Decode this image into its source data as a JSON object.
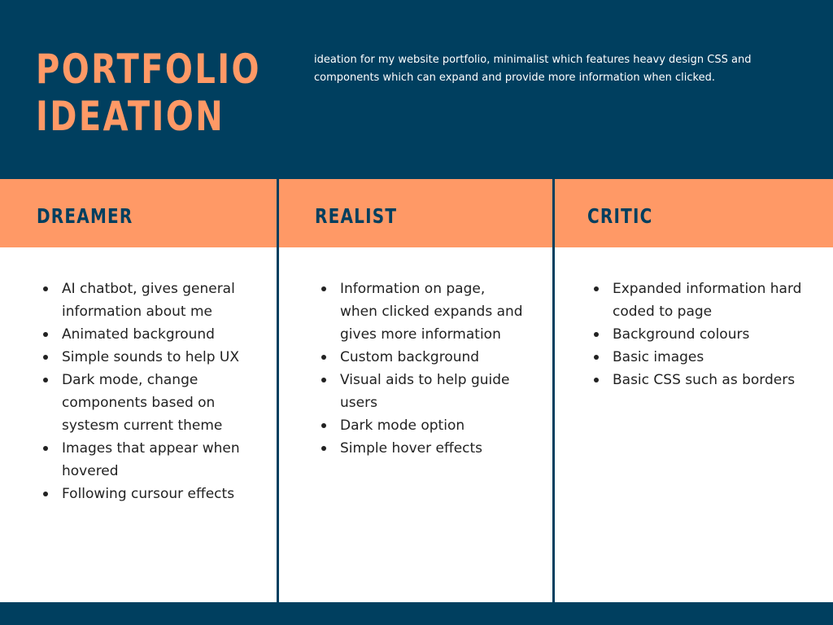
{
  "theme": {
    "navy": "#003F5F",
    "orange": "#FF9966"
  },
  "header": {
    "title_line1": "PORTFOLIO",
    "title_line2": "IDEATION",
    "description": "ideation for my website portfolio, minimalist which features heavy design CSS and components which can expand and provide more information when clicked."
  },
  "columns": [
    {
      "heading": "DREAMER",
      "items": [
        "AI chatbot, gives general information about me",
        "Animated background",
        "Simple sounds to help UX",
        "Dark mode, change components based on systesm current theme",
        "Images that appear when hovered",
        "Following cursour effects"
      ]
    },
    {
      "heading": "REALIST",
      "items": [
        "Information on page, when clicked expands and gives more information",
        "Custom background",
        "Visual aids to help guide users",
        "Dark mode option",
        "Simple hover effects"
      ]
    },
    {
      "heading": "CRITIC",
      "items": [
        "Expanded information hard coded to page",
        "Background colours",
        "Basic images",
        "Basic CSS such as borders"
      ]
    }
  ]
}
